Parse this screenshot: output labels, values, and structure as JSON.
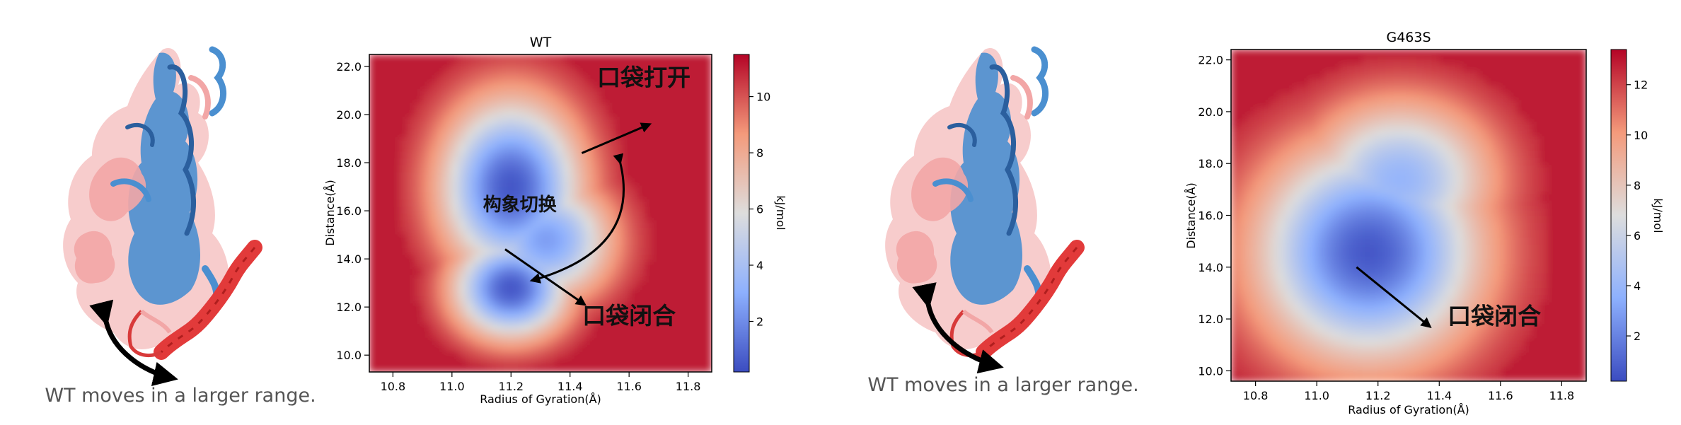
{
  "colors": {
    "low": "#3b4cc0",
    "mid": "#dddddd",
    "high": "#c0282f",
    "protein_wt": "#4a8fd0",
    "protein_pink": "#f2a6a6",
    "helix_red": "#e23a3a"
  },
  "panels": [
    {
      "caption": "WT moves in a larger range.",
      "icon": "protein-structure-overlay"
    },
    {
      "caption": "WT moves in a larger range.",
      "icon": "protein-structure-overlay"
    }
  ],
  "chart_data": [
    {
      "type": "heatmap",
      "title": "WT",
      "xlabel": "Radius of Gyration(Å)",
      "ylabel": "Distance(Å)",
      "xlim": [
        10.72,
        11.88
      ],
      "ylim": [
        9.3,
        22.5
      ],
      "xticks": [
        "10.8",
        "11.0",
        "11.2",
        "11.4",
        "11.6",
        "11.8"
      ],
      "xtick_values": [
        10.8,
        11.0,
        11.2,
        11.4,
        11.6,
        11.8
      ],
      "yticks": [
        "10.0",
        "12.0",
        "14.0",
        "16.0",
        "18.0",
        "20.0",
        "22.0"
      ],
      "ytick_values": [
        10,
        12,
        14,
        16,
        18,
        20,
        22
      ],
      "colorbar": {
        "label": "kJ/mol",
        "ticks": [
          "2",
          "4",
          "6",
          "8",
          "10"
        ],
        "tick_values": [
          2,
          4,
          6,
          8,
          10
        ],
        "min": 0.2,
        "max": 11.5
      },
      "basins": [
        {
          "x": 11.2,
          "y": 17.0,
          "depth": 11.0,
          "sx": 0.17,
          "sy": 2.6
        },
        {
          "x": 11.2,
          "y": 12.8,
          "depth": 11.0,
          "sx": 0.14,
          "sy": 1.5
        },
        {
          "x": 11.32,
          "y": 14.8,
          "depth": 9.0,
          "sx": 0.16,
          "sy": 1.8
        }
      ],
      "annotations": [
        {
          "text": "口袋打开",
          "x": 11.65,
          "y": 21.2
        },
        {
          "text": "构象切换",
          "x": 11.23,
          "y": 16.0
        },
        {
          "text": "口袋闭合",
          "x": 11.6,
          "y": 11.3
        }
      ],
      "arrows": [
        {
          "from": [
            11.44,
            18.4
          ],
          "to": [
            11.67,
            19.6
          ]
        },
        {
          "from": [
            11.18,
            14.4
          ],
          "to": [
            11.45,
            12.1
          ]
        }
      ],
      "curved_arrow": {
        "from": [
          11.57,
          18.0
        ],
        "to": [
          11.27,
          13.1
        ]
      }
    },
    {
      "type": "heatmap",
      "title": "G463S",
      "xlabel": "Radius of Gyration(Å)",
      "ylabel": "Distance(Å)",
      "xlim": [
        10.72,
        11.88
      ],
      "ylim": [
        9.6,
        22.4
      ],
      "xticks": [
        "10.8",
        "11.0",
        "11.2",
        "11.4",
        "11.6",
        "11.8"
      ],
      "xtick_values": [
        10.8,
        11.0,
        11.2,
        11.4,
        11.6,
        11.8
      ],
      "yticks": [
        "10.0",
        "12.0",
        "14.0",
        "16.0",
        "18.0",
        "20.0",
        "22.0"
      ],
      "ytick_values": [
        10,
        12,
        14,
        16,
        18,
        20,
        22
      ],
      "colorbar": {
        "label": "kJ/mol",
        "ticks": [
          "2",
          "4",
          "6",
          "8",
          "10",
          "12"
        ],
        "tick_values": [
          2,
          4,
          6,
          8,
          10,
          12
        ],
        "min": 0.2,
        "max": 13.4
      },
      "basins": [
        {
          "x": 11.17,
          "y": 14.6,
          "depth": 12.8,
          "sx": 0.26,
          "sy": 3.0
        },
        {
          "x": 11.27,
          "y": 17.4,
          "depth": 9.5,
          "sx": 0.22,
          "sy": 2.2
        }
      ],
      "annotations": [
        {
          "text": "口袋闭合",
          "x": 11.58,
          "y": 11.8
        }
      ],
      "arrows": [
        {
          "from": [
            11.13,
            14.0
          ],
          "to": [
            11.37,
            11.7
          ]
        }
      ]
    }
  ]
}
